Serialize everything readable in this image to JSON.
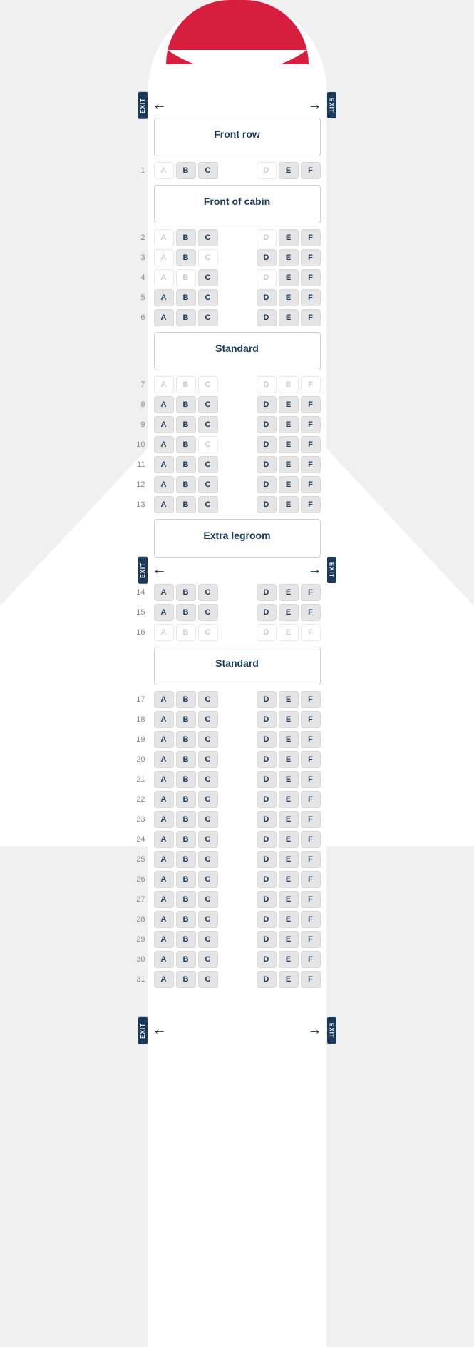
{
  "colors": {
    "background": "#f0f0f0",
    "fuselage": "#ffffff",
    "nose_red": "#d81e3f",
    "nose_blue": "#1a3a5c",
    "text_primary": "#1a3a5c",
    "seat_available_bg": "#e5e5e5",
    "seat_available_text": "#1a3a5c",
    "seat_unavailable_bg": "#ffffff",
    "seat_unavailable_text": "#cccccc"
  },
  "exit_label": "EXIT",
  "columns_left": [
    "A",
    "B",
    "C"
  ],
  "columns_right": [
    "D",
    "E",
    "F"
  ],
  "sections": [
    {
      "exit_before": true,
      "title": "Front row",
      "rows": [
        {
          "num": "1",
          "seats": {
            "A": "u",
            "B": "a",
            "C": "a",
            "D": "u",
            "E": "a",
            "F": "a"
          }
        }
      ]
    },
    {
      "title": "Front of cabin",
      "rows": [
        {
          "num": "2",
          "seats": {
            "A": "u",
            "B": "a",
            "C": "a",
            "D": "u",
            "E": "a",
            "F": "a"
          }
        },
        {
          "num": "3",
          "seats": {
            "A": "u",
            "B": "a",
            "C": "u",
            "D": "a",
            "E": "a",
            "F": "a"
          }
        },
        {
          "num": "4",
          "seats": {
            "A": "u",
            "B": "u",
            "C": "a",
            "D": "u",
            "E": "a",
            "F": "a"
          }
        },
        {
          "num": "5",
          "seats": {
            "A": "a",
            "B": "a",
            "C": "a",
            "D": "a",
            "E": "a",
            "F": "a"
          }
        },
        {
          "num": "6",
          "seats": {
            "A": "a",
            "B": "a",
            "C": "a",
            "D": "a",
            "E": "a",
            "F": "a"
          }
        }
      ]
    },
    {
      "title": "Standard",
      "rows": [
        {
          "num": "7",
          "seats": {
            "A": "u",
            "B": "u",
            "C": "u",
            "D": "u",
            "E": "u",
            "F": "u"
          }
        },
        {
          "num": "8",
          "seats": {
            "A": "a",
            "B": "a",
            "C": "a",
            "D": "a",
            "E": "a",
            "F": "a"
          }
        },
        {
          "num": "9",
          "seats": {
            "A": "a",
            "B": "a",
            "C": "a",
            "D": "a",
            "E": "a",
            "F": "a"
          }
        },
        {
          "num": "10",
          "seats": {
            "A": "a",
            "B": "a",
            "C": "u",
            "D": "a",
            "E": "a",
            "F": "a"
          }
        },
        {
          "num": "11",
          "seats": {
            "A": "a",
            "B": "a",
            "C": "a",
            "D": "a",
            "E": "a",
            "F": "a"
          }
        },
        {
          "num": "12",
          "seats": {
            "A": "a",
            "B": "a",
            "C": "a",
            "D": "a",
            "E": "a",
            "F": "a"
          }
        },
        {
          "num": "13",
          "seats": {
            "A": "a",
            "B": "a",
            "C": "a",
            "D": "a",
            "E": "a",
            "F": "a"
          }
        }
      ]
    },
    {
      "title": "Extra legroom",
      "exit_after_title": true,
      "rows": [
        {
          "num": "14",
          "seats": {
            "A": "a",
            "B": "a",
            "C": "a",
            "D": "a",
            "E": "a",
            "F": "a"
          }
        },
        {
          "num": "15",
          "seats": {
            "A": "a",
            "B": "a",
            "C": "a",
            "D": "a",
            "E": "a",
            "F": "a"
          }
        },
        {
          "num": "16",
          "seats": {
            "A": "u",
            "B": "u",
            "C": "u",
            "D": "u",
            "E": "u",
            "F": "u"
          }
        }
      ]
    },
    {
      "title": "Standard",
      "rows": [
        {
          "num": "17",
          "seats": {
            "A": "a",
            "B": "a",
            "C": "a",
            "D": "a",
            "E": "a",
            "F": "a"
          }
        },
        {
          "num": "18",
          "seats": {
            "A": "a",
            "B": "a",
            "C": "a",
            "D": "a",
            "E": "a",
            "F": "a"
          }
        },
        {
          "num": "19",
          "seats": {
            "A": "a",
            "B": "a",
            "C": "a",
            "D": "a",
            "E": "a",
            "F": "a"
          }
        },
        {
          "num": "20",
          "seats": {
            "A": "a",
            "B": "a",
            "C": "a",
            "D": "a",
            "E": "a",
            "F": "a"
          }
        },
        {
          "num": "21",
          "seats": {
            "A": "a",
            "B": "a",
            "C": "a",
            "D": "a",
            "E": "a",
            "F": "a"
          }
        },
        {
          "num": "22",
          "seats": {
            "A": "a",
            "B": "a",
            "C": "a",
            "D": "a",
            "E": "a",
            "F": "a"
          }
        },
        {
          "num": "23",
          "seats": {
            "A": "a",
            "B": "a",
            "C": "a",
            "D": "a",
            "E": "a",
            "F": "a"
          }
        },
        {
          "num": "24",
          "seats": {
            "A": "a",
            "B": "a",
            "C": "a",
            "D": "a",
            "E": "a",
            "F": "a"
          }
        },
        {
          "num": "25",
          "seats": {
            "A": "a",
            "B": "a",
            "C": "a",
            "D": "a",
            "E": "a",
            "F": "a"
          }
        },
        {
          "num": "26",
          "seats": {
            "A": "a",
            "B": "a",
            "C": "a",
            "D": "a",
            "E": "a",
            "F": "a"
          }
        },
        {
          "num": "27",
          "seats": {
            "A": "a",
            "B": "a",
            "C": "a",
            "D": "a",
            "E": "a",
            "F": "a"
          }
        },
        {
          "num": "28",
          "seats": {
            "A": "a",
            "B": "a",
            "C": "a",
            "D": "a",
            "E": "a",
            "F": "a"
          }
        },
        {
          "num": "29",
          "seats": {
            "A": "a",
            "B": "a",
            "C": "a",
            "D": "a",
            "E": "a",
            "F": "a"
          }
        },
        {
          "num": "30",
          "seats": {
            "A": "a",
            "B": "a",
            "C": "a",
            "D": "a",
            "E": "a",
            "F": "a"
          }
        },
        {
          "num": "31",
          "seats": {
            "A": "a",
            "B": "a",
            "C": "a",
            "D": "a",
            "E": "a",
            "F": "a"
          }
        }
      ],
      "exit_after": true
    }
  ]
}
